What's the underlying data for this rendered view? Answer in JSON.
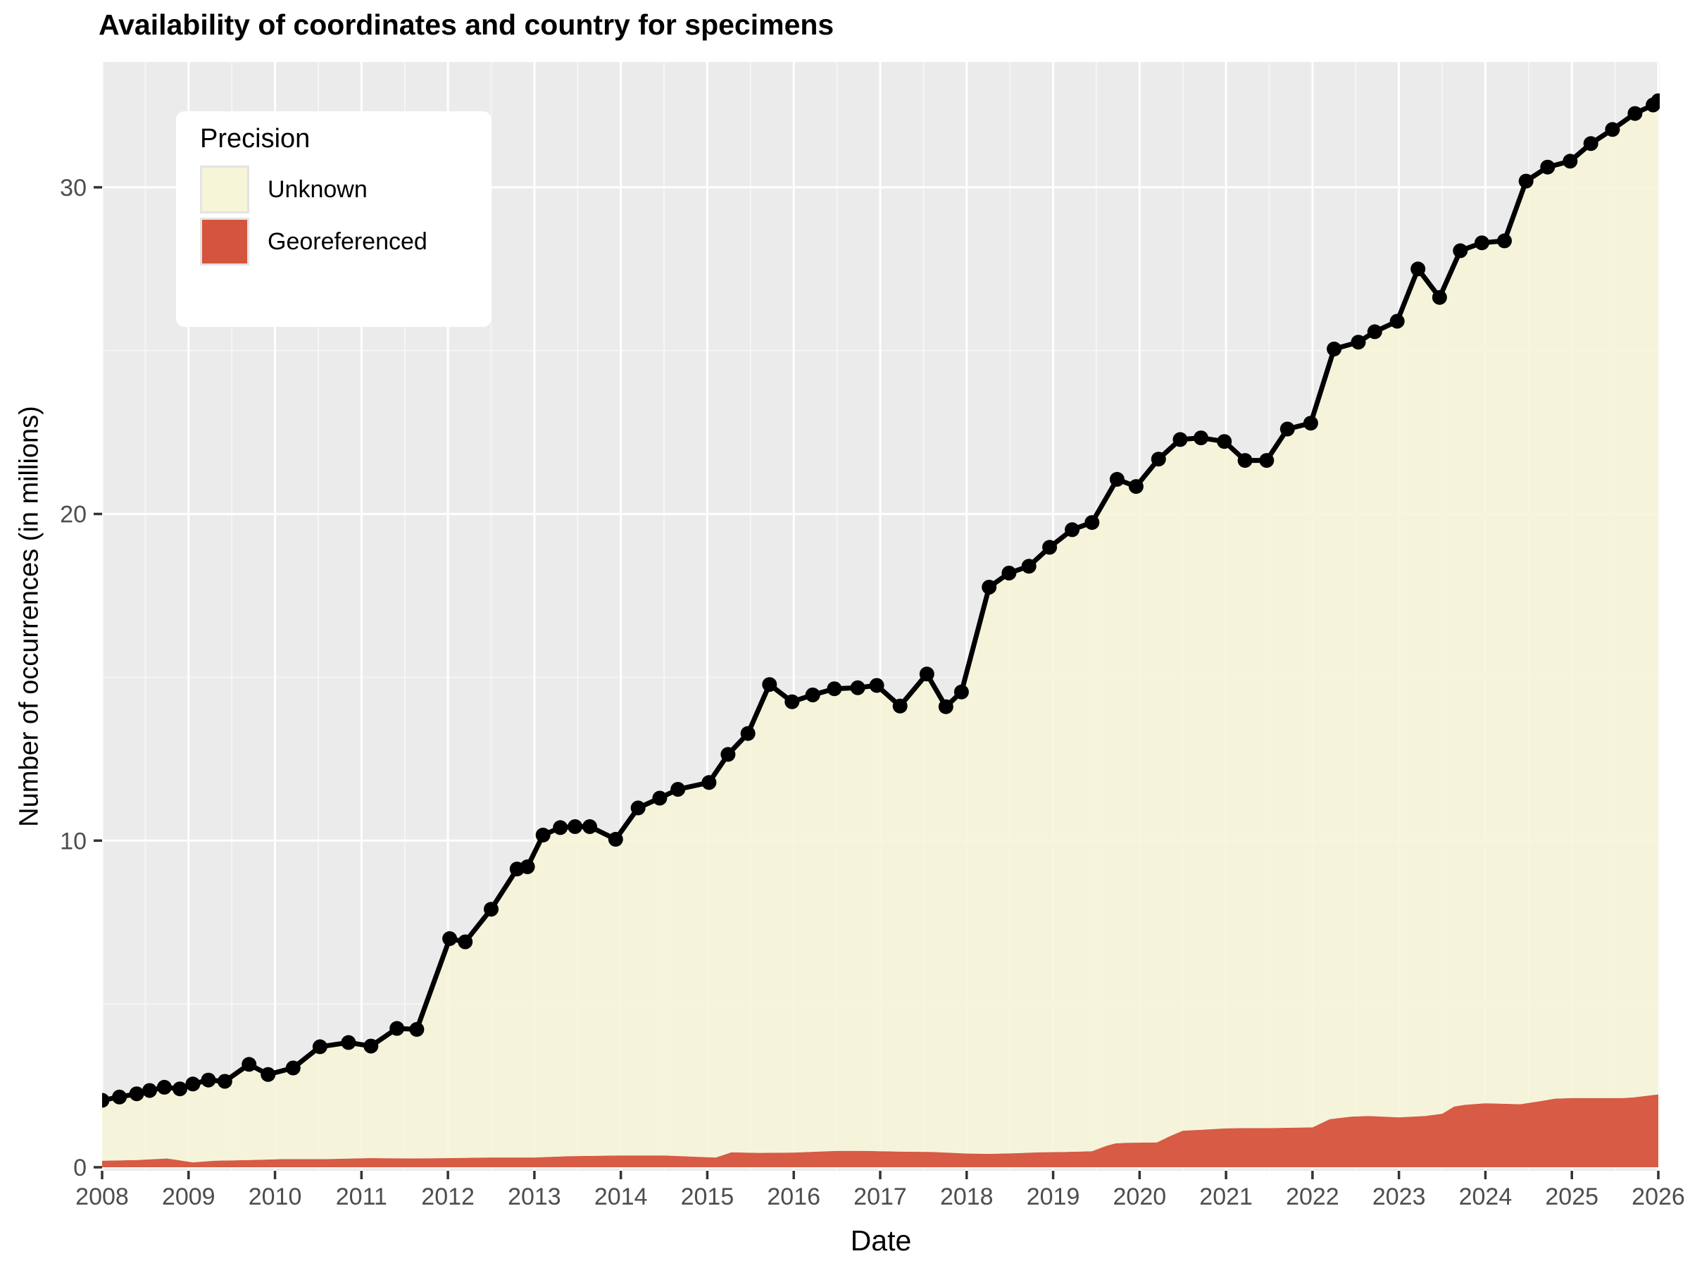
{
  "title": "Availability of coordinates and country for specimens",
  "axes": {
    "x_label": "Date",
    "y_label": "Number of occurrences (in millions)",
    "x_tick_labels": [
      "2008",
      "2009",
      "2010",
      "2011",
      "2012",
      "2013",
      "2014",
      "2015",
      "2016",
      "2017",
      "2018",
      "2019",
      "2020",
      "2021",
      "2022",
      "2023",
      "2024",
      "2025",
      "2026"
    ],
    "y_tick_labels": [
      "0",
      "10",
      "20",
      "30"
    ],
    "y_tick_values": [
      0,
      10,
      20,
      30
    ],
    "y_minor_values": [
      5,
      15,
      25
    ]
  },
  "legend": {
    "title": "Precision",
    "entries": [
      {
        "label": "Unknown",
        "color": "#F6F5D8"
      },
      {
        "label": "Georeferenced",
        "color": "#D5543D"
      }
    ]
  },
  "colors": {
    "panel_background": "#EBEBEB",
    "gridline": "#FFFFFF",
    "unknown_fill": "#F6F5D8",
    "georeferenced_fill": "#D5543D",
    "total_line": "#000000",
    "tick_text": "#4D4D4D",
    "tick_mark": "#333333"
  },
  "chart_data": {
    "type": "area",
    "title": "Availability of coordinates and country for specimens",
    "xlabel": "Date",
    "ylabel": "Number of occurrences (in millions)",
    "xlim": [
      2008,
      2026
    ],
    "ylim": [
      0,
      33.8
    ],
    "grid": "on",
    "legend_position": "inside-top-left",
    "series": [
      {
        "name": "Total (line with points)",
        "type": "line",
        "points": [
          [
            2008.0,
            2.05
          ],
          [
            2008.2,
            2.15
          ],
          [
            2008.4,
            2.25
          ],
          [
            2008.55,
            2.35
          ],
          [
            2008.72,
            2.45
          ],
          [
            2008.9,
            2.4
          ],
          [
            2009.05,
            2.55
          ],
          [
            2009.23,
            2.67
          ],
          [
            2009.42,
            2.63
          ],
          [
            2009.7,
            3.15
          ],
          [
            2009.92,
            2.84
          ],
          [
            2010.21,
            3.04
          ],
          [
            2010.52,
            3.69
          ],
          [
            2010.85,
            3.82
          ],
          [
            2011.11,
            3.71
          ],
          [
            2011.41,
            4.25
          ],
          [
            2011.64,
            4.22
          ],
          [
            2012.02,
            7.0
          ],
          [
            2012.2,
            6.9
          ],
          [
            2012.5,
            7.9
          ],
          [
            2012.8,
            9.13
          ],
          [
            2012.92,
            9.2
          ],
          [
            2013.1,
            10.17
          ],
          [
            2013.3,
            10.4
          ],
          [
            2013.47,
            10.43
          ],
          [
            2013.64,
            10.43
          ],
          [
            2013.94,
            10.04
          ],
          [
            2014.2,
            11.0
          ],
          [
            2014.45,
            11.3
          ],
          [
            2014.66,
            11.57
          ],
          [
            2015.02,
            11.78
          ],
          [
            2015.24,
            12.64
          ],
          [
            2015.47,
            13.28
          ],
          [
            2015.72,
            14.78
          ],
          [
            2015.98,
            14.25
          ],
          [
            2016.22,
            14.46
          ],
          [
            2016.47,
            14.65
          ],
          [
            2016.74,
            14.68
          ],
          [
            2016.96,
            14.75
          ],
          [
            2017.23,
            14.12
          ],
          [
            2017.54,
            15.1
          ],
          [
            2017.76,
            14.1
          ],
          [
            2017.94,
            14.55
          ],
          [
            2018.26,
            17.76
          ],
          [
            2018.49,
            18.19
          ],
          [
            2018.72,
            18.4
          ],
          [
            2018.96,
            18.98
          ],
          [
            2019.22,
            19.52
          ],
          [
            2019.45,
            19.74
          ],
          [
            2019.74,
            21.06
          ],
          [
            2019.96,
            20.84
          ],
          [
            2020.22,
            21.68
          ],
          [
            2020.47,
            22.28
          ],
          [
            2020.71,
            22.33
          ],
          [
            2020.98,
            22.22
          ],
          [
            2021.22,
            21.64
          ],
          [
            2021.47,
            21.64
          ],
          [
            2021.71,
            22.6
          ],
          [
            2021.98,
            22.78
          ],
          [
            2022.25,
            25.05
          ],
          [
            2022.53,
            25.26
          ],
          [
            2022.72,
            25.58
          ],
          [
            2022.98,
            25.9
          ],
          [
            2023.22,
            27.5
          ],
          [
            2023.47,
            26.63
          ],
          [
            2023.71,
            28.06
          ],
          [
            2023.96,
            28.3
          ],
          [
            2024.22,
            28.36
          ],
          [
            2024.47,
            30.19
          ],
          [
            2024.72,
            30.62
          ],
          [
            2024.98,
            30.8
          ],
          [
            2025.22,
            31.34
          ],
          [
            2025.47,
            31.77
          ],
          [
            2025.73,
            32.26
          ],
          [
            2025.94,
            32.52
          ],
          [
            2026.0,
            32.65
          ]
        ]
      },
      {
        "name": "Georeferenced",
        "type": "area",
        "points": [
          [
            2008.0,
            0.2
          ],
          [
            2008.4,
            0.22
          ],
          [
            2008.75,
            0.27
          ],
          [
            2009.05,
            0.15
          ],
          [
            2009.3,
            0.2
          ],
          [
            2009.7,
            0.22
          ],
          [
            2010.1,
            0.25
          ],
          [
            2010.6,
            0.25
          ],
          [
            2011.1,
            0.28
          ],
          [
            2011.6,
            0.27
          ],
          [
            2012.0,
            0.28
          ],
          [
            2012.5,
            0.3
          ],
          [
            2013.0,
            0.3
          ],
          [
            2013.4,
            0.34
          ],
          [
            2014.0,
            0.36
          ],
          [
            2014.5,
            0.36
          ],
          [
            2014.9,
            0.32
          ],
          [
            2015.1,
            0.3
          ],
          [
            2015.28,
            0.46
          ],
          [
            2015.6,
            0.44
          ],
          [
            2016.0,
            0.45
          ],
          [
            2016.5,
            0.5
          ],
          [
            2016.8,
            0.5
          ],
          [
            2017.2,
            0.48
          ],
          [
            2017.6,
            0.47
          ],
          [
            2018.0,
            0.42
          ],
          [
            2018.25,
            0.41
          ],
          [
            2018.55,
            0.43
          ],
          [
            2018.85,
            0.46
          ],
          [
            2019.15,
            0.47
          ],
          [
            2019.45,
            0.49
          ],
          [
            2019.62,
            0.66
          ],
          [
            2019.72,
            0.73
          ],
          [
            2019.85,
            0.75
          ],
          [
            2020.2,
            0.76
          ],
          [
            2020.35,
            0.95
          ],
          [
            2020.5,
            1.12
          ],
          [
            2020.72,
            1.15
          ],
          [
            2021.0,
            1.19
          ],
          [
            2021.25,
            1.2
          ],
          [
            2021.5,
            1.2
          ],
          [
            2022.0,
            1.22
          ],
          [
            2022.2,
            1.47
          ],
          [
            2022.45,
            1.55
          ],
          [
            2022.65,
            1.57
          ],
          [
            2023.0,
            1.53
          ],
          [
            2023.3,
            1.57
          ],
          [
            2023.5,
            1.64
          ],
          [
            2023.64,
            1.86
          ],
          [
            2023.76,
            1.91
          ],
          [
            2024.0,
            1.96
          ],
          [
            2024.4,
            1.93
          ],
          [
            2024.65,
            2.03
          ],
          [
            2024.8,
            2.1
          ],
          [
            2025.0,
            2.12
          ],
          [
            2025.6,
            2.12
          ],
          [
            2025.72,
            2.14
          ],
          [
            2025.96,
            2.22
          ],
          [
            2026.0,
            2.23
          ]
        ]
      },
      {
        "name": "Unknown",
        "type": "area-band",
        "note": "Band between Georeferenced top and Total line (stacked)."
      }
    ]
  }
}
